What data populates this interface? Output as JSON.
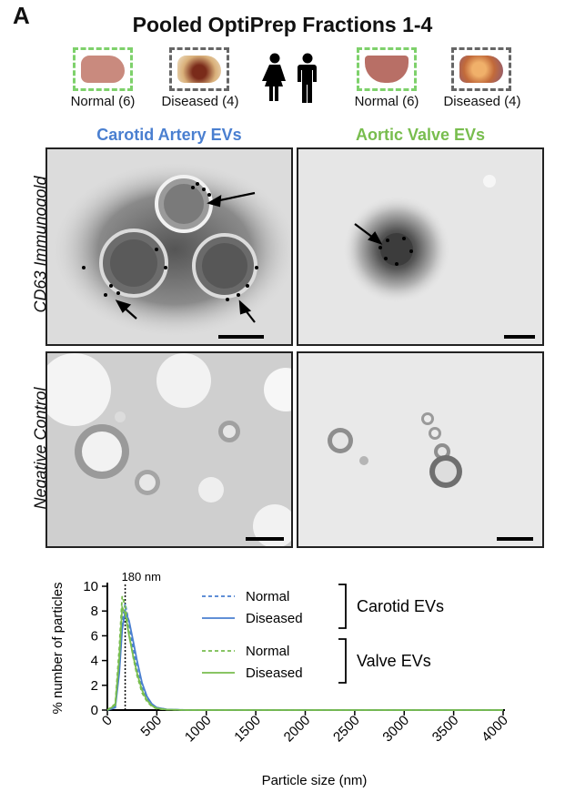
{
  "figure": {
    "panel_letter": "A",
    "title": "Pooled OptiPrep Fractions 1-4",
    "thumbs": [
      {
        "label": "Normal (6)",
        "frame": "green",
        "tissue": "#c98a7e"
      },
      {
        "label": "Diseased (4)",
        "frame": "gray",
        "tissue": "#c98a3e"
      },
      {
        "label": "Normal (6)",
        "frame": "green",
        "tissue": "#b86f66"
      },
      {
        "label": "Diseased (4)",
        "frame": "gray",
        "tissue": "#c7733f"
      }
    ],
    "icons": [
      "female-person-icon",
      "male-person-icon"
    ],
    "columns": [
      {
        "label": "Carotid Artery EVs",
        "color": "#4a7fd0"
      },
      {
        "label": "Aortic Valve EVs",
        "color": "#78bd4e"
      }
    ],
    "rows": [
      "CD63 Immunogold",
      "Negative Control"
    ]
  },
  "chart_data": {
    "type": "line",
    "ylabel": "% number of particles",
    "xlabel": "Particle size  (nm)",
    "xlim": [
      0,
      4000
    ],
    "ylim": [
      0,
      10
    ],
    "xticks": [
      "0",
      "500",
      "1000",
      "1500",
      "2000",
      "2500",
      "3000",
      "3500",
      "4000"
    ],
    "yticks": [
      "0",
      "2",
      "4",
      "6",
      "8",
      "10"
    ],
    "annotation": {
      "text": "180 nm",
      "x": 180
    },
    "legend_groups": [
      {
        "label": "Carotid EVs",
        "entries": [
          "Normal",
          "Diseased"
        ]
      },
      {
        "label": "Valve EVs",
        "entries": [
          "Normal",
          "Diseased"
        ]
      }
    ],
    "series": [
      {
        "name": "Normal",
        "group": "Carotid EVs",
        "color": "#4a7fd0",
        "dash": true,
        "x": [
          0,
          80,
          120,
          150,
          180,
          220,
          260,
          300,
          350,
          400,
          450,
          500,
          600,
          800,
          1000,
          4000
        ],
        "y": [
          0,
          0.3,
          3.5,
          7.2,
          8.6,
          7.0,
          5.0,
          3.3,
          1.8,
          0.9,
          0.4,
          0.2,
          0.05,
          0,
          0,
          0
        ]
      },
      {
        "name": "Diseased",
        "group": "Carotid EVs",
        "color": "#4a7fd0",
        "dash": false,
        "x": [
          0,
          80,
          120,
          150,
          180,
          220,
          260,
          300,
          350,
          400,
          450,
          500,
          600,
          800,
          1000,
          4000
        ],
        "y": [
          0,
          0.2,
          3.0,
          6.5,
          8.0,
          7.2,
          5.6,
          4.0,
          2.2,
          1.1,
          0.5,
          0.2,
          0.05,
          0,
          0,
          0
        ]
      },
      {
        "name": "Normal",
        "group": "Valve EVs",
        "color": "#78bd4e",
        "dash": true,
        "x": [
          0,
          80,
          120,
          150,
          180,
          220,
          260,
          300,
          350,
          400,
          450,
          500,
          600,
          800,
          1000,
          4000
        ],
        "y": [
          0,
          0.5,
          5.0,
          9.2,
          8.4,
          6.2,
          4.3,
          2.8,
          1.4,
          0.7,
          0.3,
          0.1,
          0.03,
          0,
          0,
          0
        ]
      },
      {
        "name": "Diseased",
        "group": "Valve EVs",
        "color": "#78bd4e",
        "dash": false,
        "x": [
          0,
          80,
          120,
          150,
          180,
          220,
          260,
          300,
          350,
          400,
          450,
          500,
          600,
          800,
          1000,
          4000
        ],
        "y": [
          0,
          0.4,
          4.2,
          8.3,
          7.8,
          6.0,
          4.4,
          3.0,
          1.6,
          0.8,
          0.35,
          0.15,
          0.04,
          0,
          0,
          0
        ]
      }
    ]
  }
}
